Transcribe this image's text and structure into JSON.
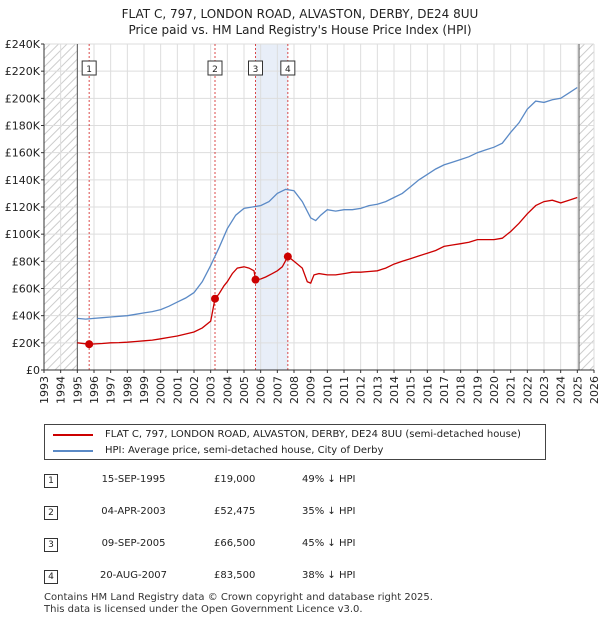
{
  "title_line1": "FLAT C, 797, LONDON ROAD, ALVASTON, DERBY, DE24 8UU",
  "title_line2": "Price paid vs. HM Land Registry's House Price Index (HPI)",
  "legend": {
    "property": "FLAT C, 797, LONDON ROAD, ALVASTON, DERBY, DE24 8UU (semi-detached house)",
    "hpi": "HPI: Average price, semi-detached house, City of Derby"
  },
  "colors": {
    "property": "#cc0000",
    "hpi": "#5b8ac6",
    "hatch": "#cccccc",
    "grid": "#dddddd",
    "shade": "#e8eef8"
  },
  "sales": [
    {
      "num": "1",
      "date": "15-SEP-1995",
      "price": "£19,000",
      "hpi": "49% ↓ HPI"
    },
    {
      "num": "2",
      "date": "04-APR-2003",
      "price": "£52,475",
      "hpi": "35% ↓ HPI"
    },
    {
      "num": "3",
      "date": "09-SEP-2005",
      "price": "£66,500",
      "hpi": "45% ↓ HPI"
    },
    {
      "num": "4",
      "date": "20-AUG-2007",
      "price": "£83,500",
      "hpi": "38% ↓ HPI"
    }
  ],
  "footer_line1": "Contains HM Land Registry data © Crown copyright and database right 2025.",
  "footer_line2": "This data is licensed under the Open Government Licence v3.0.",
  "chart_data": {
    "type": "line",
    "title": "FLAT C, 797, LONDON ROAD, ALVASTON, DERBY, DE24 8UU",
    "subtitle": "Price paid vs. HM Land Registry's House Price Index (HPI)",
    "xlim": [
      1993,
      2026
    ],
    "ylim": [
      0,
      240000
    ],
    "x_ticks": [
      1993,
      1994,
      1995,
      1996,
      1997,
      1998,
      1999,
      2000,
      2001,
      2002,
      2003,
      2004,
      2005,
      2006,
      2007,
      2008,
      2009,
      2010,
      2011,
      2012,
      2013,
      2014,
      2015,
      2016,
      2017,
      2018,
      2019,
      2020,
      2021,
      2022,
      2023,
      2024,
      2025,
      2026
    ],
    "y_ticks": [
      0,
      20000,
      40000,
      60000,
      80000,
      100000,
      120000,
      140000,
      160000,
      180000,
      200000,
      220000,
      240000
    ],
    "y_tick_labels": [
      "£0",
      "£20K",
      "£40K",
      "£60K",
      "£80K",
      "£100K",
      "£120K",
      "£140K",
      "£160K",
      "£180K",
      "£200K",
      "£220K",
      "£240K"
    ],
    "hatched_ranges": [
      [
        1993,
        1995.0
      ],
      [
        2025.1,
        2026
      ]
    ],
    "series": [
      {
        "name": "FLAT C, 797, LONDON ROAD, ALVASTON, DERBY, DE24 8UU (semi-detached house)",
        "x": [
          1995.0,
          1995.7,
          1996.5,
          1997.0,
          1997.5,
          1998.0,
          1998.5,
          1999.0,
          1999.5,
          2000.0,
          2000.5,
          2001.0,
          2001.5,
          2002.0,
          2002.5,
          2003.0,
          2003.26,
          2003.5,
          2003.8,
          2004.0,
          2004.3,
          2004.6,
          2005.0,
          2005.3,
          2005.6,
          2005.69,
          2006.0,
          2006.3,
          2006.7,
          2007.0,
          2007.3,
          2007.63,
          2007.8,
          2008.0,
          2008.5,
          2008.8,
          2009.0,
          2009.2,
          2009.5,
          2010.0,
          2010.5,
          2011.0,
          2011.5,
          2012.0,
          2012.5,
          2013.0,
          2013.5,
          2014.0,
          2014.5,
          2015.0,
          2015.5,
          2016.0,
          2016.5,
          2017.0,
          2017.5,
          2018.0,
          2018.5,
          2019.0,
          2019.5,
          2020.0,
          2020.5,
          2021.0,
          2021.5,
          2022.0,
          2022.5,
          2023.0,
          2023.5,
          2024.0,
          2024.5,
          2025.0
        ],
        "values": [
          20000,
          19000,
          19500,
          20000,
          20200,
          20500,
          21000,
          21500,
          22000,
          23000,
          24000,
          25000,
          26500,
          28000,
          31000,
          36000,
          52475,
          56000,
          62000,
          65000,
          71000,
          75000,
          76000,
          75000,
          73000,
          66500,
          67000,
          68500,
          71000,
          73000,
          76000,
          83500,
          82000,
          80000,
          75000,
          65000,
          64000,
          70000,
          71000,
          70000,
          70000,
          71000,
          72000,
          72000,
          72500,
          73000,
          75000,
          78000,
          80000,
          82000,
          84000,
          86000,
          88000,
          91000,
          92000,
          93000,
          94000,
          96000,
          96000,
          96000,
          97000,
          102000,
          108000,
          115000,
          121000,
          124000,
          125000,
          123000,
          125000,
          127000
        ]
      },
      {
        "name": "HPI: Average price, semi-detached house, City of Derby",
        "x": [
          1995.0,
          1995.5,
          1996.0,
          1996.5,
          1997.0,
          1997.5,
          1998.0,
          1998.5,
          1999.0,
          1999.5,
          2000.0,
          2000.5,
          2001.0,
          2001.5,
          2002.0,
          2002.5,
          2003.0,
          2003.5,
          2004.0,
          2004.5,
          2005.0,
          2005.5,
          2006.0,
          2006.5,
          2007.0,
          2007.5,
          2008.0,
          2008.5,
          2009.0,
          2009.3,
          2009.6,
          2010.0,
          2010.5,
          2011.0,
          2011.5,
          2012.0,
          2012.5,
          2013.0,
          2013.5,
          2014.0,
          2014.5,
          2015.0,
          2015.5,
          2016.0,
          2016.5,
          2017.0,
          2017.5,
          2018.0,
          2018.5,
          2019.0,
          2019.5,
          2020.0,
          2020.5,
          2021.0,
          2021.5,
          2022.0,
          2022.5,
          2023.0,
          2023.5,
          2024.0,
          2024.5,
          2025.0
        ],
        "values": [
          38000,
          37500,
          38000,
          38500,
          39000,
          39500,
          40000,
          41000,
          42000,
          43000,
          44500,
          47000,
          50000,
          53000,
          57000,
          65000,
          77000,
          90000,
          104000,
          114000,
          119000,
          120000,
          121000,
          124000,
          130000,
          133000,
          132000,
          124000,
          112000,
          110000,
          114000,
          118000,
          117000,
          118000,
          118000,
          119000,
          121000,
          122000,
          124000,
          127000,
          130000,
          135000,
          140000,
          144000,
          148000,
          151000,
          153000,
          155000,
          157000,
          160000,
          162000,
          164000,
          167000,
          175000,
          182000,
          192000,
          198000,
          197000,
          199000,
          200000,
          204000,
          208000
        ]
      }
    ],
    "sale_markers": [
      {
        "label": "1",
        "x": 1995.71,
        "y": 19000
      },
      {
        "label": "2",
        "x": 2003.26,
        "y": 52475
      },
      {
        "label": "3",
        "x": 2005.69,
        "y": 66500
      },
      {
        "label": "4",
        "x": 2007.63,
        "y": 83500
      }
    ],
    "shaded_ranges": [
      [
        2005.69,
        2007.63
      ]
    ],
    "legend_position": "below"
  }
}
